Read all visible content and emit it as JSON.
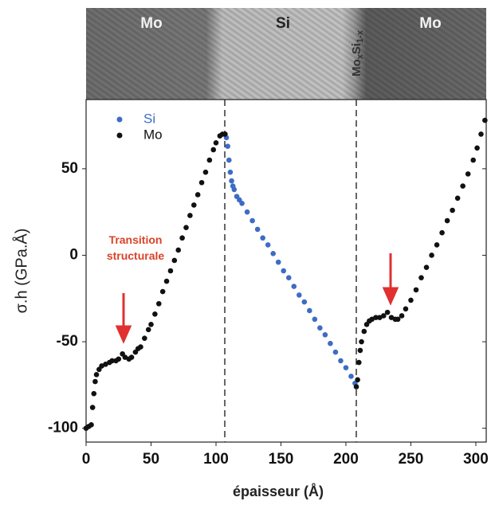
{
  "chart_data": {
    "type": "scatter",
    "band_labels": [
      "Mo",
      "Si",
      "Mo"
    ],
    "interface_label": [
      "Mo",
      "x",
      "Si",
      "1-x"
    ],
    "x_label": "épaisseur (Å)",
    "y_label": "σ.h (GPa.Å)",
    "annotation": [
      "Transition",
      "structurale"
    ],
    "xlim": [
      0,
      308
    ],
    "ylim": [
      -108,
      90
    ],
    "xticks": [
      0,
      50,
      100,
      150,
      200,
      250,
      300
    ],
    "yticks": [
      -100,
      -50,
      0,
      50
    ],
    "legend": "upper left",
    "series": [
      {
        "name": "Si",
        "color": "#3d6cc4",
        "x": [
          107,
          108,
          109,
          110,
          111,
          112,
          113,
          114,
          116,
          118,
          120,
          124,
          128,
          132,
          136,
          140,
          144,
          148,
          152,
          156,
          160,
          164,
          168,
          172,
          176,
          180,
          184,
          188,
          192,
          196,
          200,
          204,
          207
        ],
        "values": [
          70,
          68,
          63,
          55,
          48,
          43,
          40,
          38,
          34,
          32,
          30,
          25,
          20,
          15,
          10,
          6,
          1,
          -4,
          -9,
          -13,
          -18,
          -23,
          -27,
          -32,
          -37,
          -42,
          -46,
          -51,
          -56,
          -61,
          -65,
          -70,
          -74
        ]
      },
      {
        "name": "Mo",
        "color": "#111111",
        "x": [
          0,
          2,
          4,
          5,
          6,
          7,
          8,
          10,
          12,
          15,
          18,
          20,
          23,
          25,
          28,
          30,
          33,
          35,
          38,
          40,
          42,
          45,
          48,
          50,
          53,
          56,
          59,
          62,
          65,
          68,
          71,
          74,
          77,
          80,
          83,
          86,
          89,
          92,
          95,
          98,
          100,
          103,
          105,
          107,
          208,
          209,
          210,
          211,
          212,
          214,
          216,
          218,
          220,
          223,
          226,
          229,
          232,
          235,
          238,
          240,
          243,
          246,
          250,
          254,
          258,
          262,
          266,
          270,
          274,
          278,
          282,
          286,
          290,
          294,
          298,
          301,
          304,
          307
        ],
        "values": [
          -100,
          -99,
          -98,
          -88,
          -80,
          -73,
          -69,
          -66,
          -64,
          -63,
          -62,
          -61,
          -61,
          -60,
          -57,
          -59,
          -60,
          -59,
          -56,
          -54,
          -53,
          -48,
          -43,
          -40,
          -34,
          -28,
          -21,
          -15,
          -9,
          -3,
          3,
          10,
          16,
          23,
          29,
          35,
          42,
          48,
          55,
          61,
          65,
          69,
          70,
          70,
          -76,
          -72,
          -62,
          -55,
          -50,
          -44,
          -40,
          -38,
          -37,
          -36,
          -36,
          -35,
          -33,
          -36,
          -37,
          -37,
          -35,
          -31,
          -26,
          -20,
          -13,
          -7,
          0,
          6,
          13,
          20,
          26,
          33,
          40,
          47,
          55,
          62,
          70,
          78
        ]
      }
    ]
  }
}
